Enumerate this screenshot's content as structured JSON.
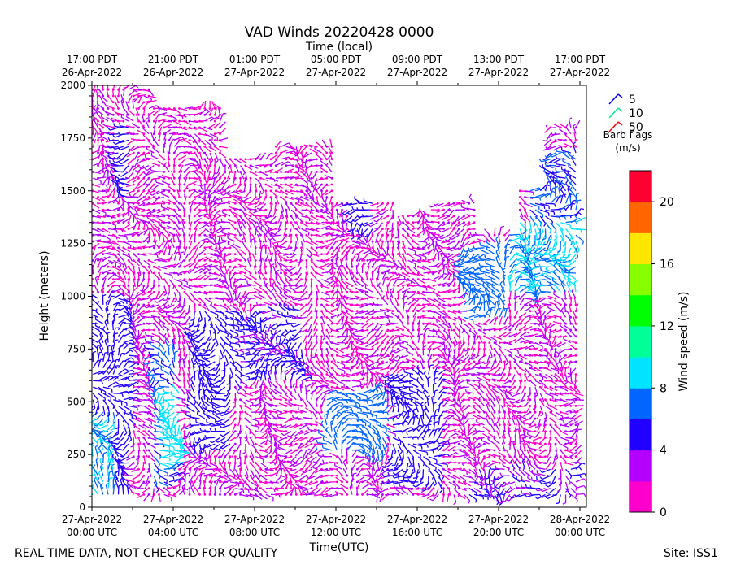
{
  "chart_data": {
    "type": "scatter",
    "title": "VAD Winds 20220428 0000",
    "top_axis_label": "Time (local)",
    "xlabel": "Time(UTC)",
    "ylabel": "Height (meters)",
    "ylim": [
      0,
      2000
    ],
    "xlim_hours": [
      0,
      24.4
    ],
    "y_ticks": [
      0,
      250,
      500,
      750,
      1000,
      1250,
      1500,
      1750,
      2000
    ],
    "y_tick_labels": [
      "0",
      "250",
      "500",
      "750",
      "1000",
      "1250",
      "1500",
      "1750",
      "2000"
    ],
    "x_ticks_hours": [
      0,
      4,
      8,
      12,
      16,
      20,
      24
    ],
    "x_tick_labels": [
      [
        "27-Apr-2022",
        "00:00 UTC"
      ],
      [
        "27-Apr-2022",
        "04:00 UTC"
      ],
      [
        "27-Apr-2022",
        "08:00 UTC"
      ],
      [
        "27-Apr-2022",
        "12:00 UTC"
      ],
      [
        "27-Apr-2022",
        "16:00 UTC"
      ],
      [
        "27-Apr-2022",
        "20:00 UTC"
      ],
      [
        "28-Apr-2022",
        "00:00 UTC"
      ]
    ],
    "top_tick_labels": [
      [
        "17:00 PDT",
        "26-Apr-2022"
      ],
      [
        "21:00 PDT",
        "26-Apr-2022"
      ],
      [
        "01:00 PDT",
        "27-Apr-2022"
      ],
      [
        "05:00 PDT",
        "27-Apr-2022"
      ],
      [
        "09:00 PDT",
        "27-Apr-2022"
      ],
      [
        "13:00 PDT",
        "27-Apr-2022"
      ],
      [
        "17:00 PDT",
        "27-Apr-2022"
      ]
    ],
    "legend": {
      "title": "Barb flags",
      "units": "(m/s)",
      "entries": [
        {
          "label": "5",
          "color": "#0000ff"
        },
        {
          "label": "10",
          "color": "#00ee88"
        },
        {
          "label": "50",
          "color": "#ff0000"
        }
      ]
    },
    "colorbar": {
      "label": "Wind speed (m/s)",
      "min": 0,
      "max": 22,
      "tick_values": [
        0,
        4,
        8,
        12,
        16,
        20
      ],
      "tick_labels": [
        "0",
        "4",
        "8",
        "12",
        "16",
        "20"
      ],
      "colors": [
        "#ff00cc",
        "#b400ff",
        "#2200ff",
        "#0066ff",
        "#00e5ff",
        "#00ff99",
        "#00ff00",
        "#88ff00",
        "#ffe600",
        "#ff6600",
        "#ff0033"
      ]
    },
    "data_description_regions": [
      {
        "t0": 0,
        "t1": 2.0,
        "h0": 60,
        "h1": 1000,
        "speed": 5
      },
      {
        "t0": 0,
        "t1": 1.2,
        "h0": 60,
        "h1": 450,
        "speed": 8
      },
      {
        "t0": 1.3,
        "t1": 2.0,
        "h0": 1450,
        "h1": 1800,
        "speed": 5
      },
      {
        "t0": 3.0,
        "t1": 4.2,
        "h0": 100,
        "h1": 750,
        "speed": 6
      },
      {
        "t0": 3.2,
        "t1": 4.3,
        "h0": 200,
        "h1": 550,
        "speed": 9
      },
      {
        "t0": 5.0,
        "t1": 7.0,
        "h0": 300,
        "h1": 950,
        "speed": 5
      },
      {
        "t0": 7.0,
        "t1": 10.5,
        "h0": 600,
        "h1": 950,
        "speed": 4.5
      },
      {
        "t0": 11.5,
        "t1": 14.5,
        "h0": 250,
        "h1": 550,
        "speed": 7
      },
      {
        "t0": 14.8,
        "t1": 17.2,
        "h0": 100,
        "h1": 650,
        "speed": 5
      },
      {
        "t0": 12.8,
        "t1": 14.0,
        "h0": 1300,
        "h1": 1500,
        "speed": 5
      },
      {
        "t0": 18.2,
        "t1": 20.5,
        "h0": 900,
        "h1": 1250,
        "speed": 7
      },
      {
        "t0": 20.5,
        "t1": 23.8,
        "h0": 1000,
        "h1": 1350,
        "speed": 8
      },
      {
        "t0": 21.5,
        "t1": 23.8,
        "h0": 1300,
        "h1": 1700,
        "speed": 6
      },
      {
        "t0": 18.5,
        "t1": 23.8,
        "h0": 50,
        "h1": 200,
        "speed": 4
      }
    ]
  },
  "footer": {
    "quality_note": "REAL TIME DATA, NOT CHECKED FOR QUALITY",
    "site": "Site: ISS1"
  }
}
